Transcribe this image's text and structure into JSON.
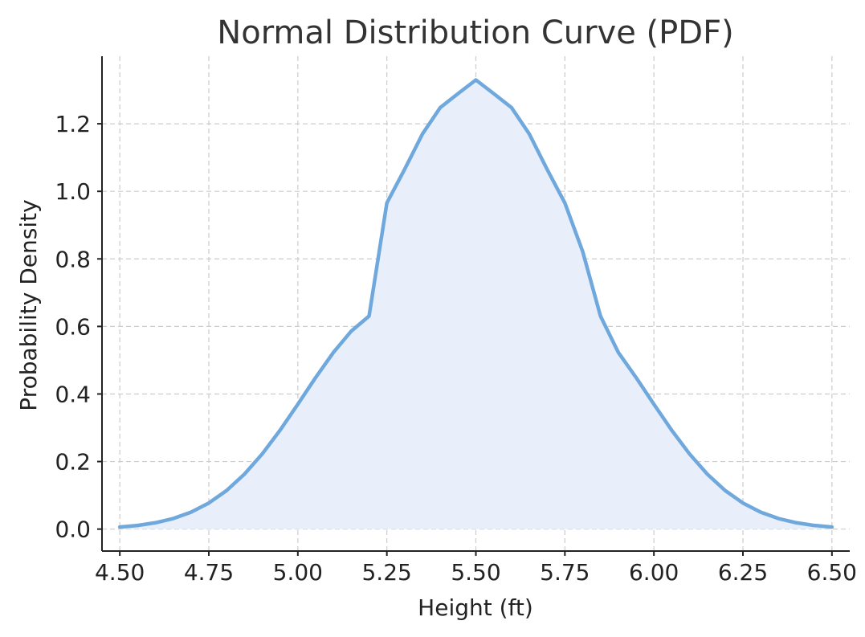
{
  "chart_data": {
    "type": "line",
    "title": "Normal Distribution Curve (PDF)",
    "xlabel": "Height (ft)",
    "ylabel": "Probability Density",
    "xlim": [
      4.45,
      6.55
    ],
    "ylim": [
      -0.065,
      1.4
    ],
    "xticks": [
      4.5,
      4.75,
      5.0,
      5.25,
      5.5,
      5.75,
      6.0,
      6.25,
      6.5
    ],
    "xtick_labels": [
      "4.50",
      "4.75",
      "5.00",
      "5.25",
      "5.50",
      "5.75",
      "6.00",
      "6.25",
      "6.50"
    ],
    "yticks": [
      0.0,
      0.2,
      0.4,
      0.6,
      0.8,
      1.0,
      1.2
    ],
    "ytick_labels": [
      "0.0",
      "0.2",
      "0.4",
      "0.6",
      "0.8",
      "1.0",
      "1.2"
    ],
    "grid": true,
    "series": [
      {
        "color": "#6fa8dc",
        "fill_color": "#e8eefa",
        "x": [
          4.5,
          4.55,
          4.6,
          4.65,
          4.7,
          4.75,
          4.8,
          4.85,
          4.9,
          4.95,
          5.0,
          5.05,
          5.1,
          5.15,
          5.2,
          5.25,
          5.3,
          5.35,
          5.4,
          5.45,
          5.5,
          5.55,
          5.6,
          5.65,
          5.7,
          5.75,
          5.8,
          5.85,
          5.9,
          5.95,
          6.0,
          6.05,
          6.1,
          6.15,
          6.2,
          6.25,
          6.3,
          6.35,
          6.4,
          6.45,
          6.5
        ],
        "y": [
          0.0061,
          0.0109,
          0.0188,
          0.0313,
          0.0501,
          0.0772,
          0.1143,
          0.1627,
          0.2226,
          0.2927,
          0.3697,
          0.4487,
          0.5232,
          0.5861,
          0.6306,
          0.9656,
          1.0653,
          1.1698,
          1.248,
          1.2894,
          1.3298,
          1.2894,
          1.248,
          1.1698,
          1.0653,
          0.9656,
          0.8217,
          0.6306,
          0.5232,
          0.4487,
          0.3697,
          0.2927,
          0.2226,
          0.1627,
          0.1143,
          0.0772,
          0.0501,
          0.0313,
          0.0188,
          0.0109,
          0.0061
        ]
      }
    ]
  }
}
